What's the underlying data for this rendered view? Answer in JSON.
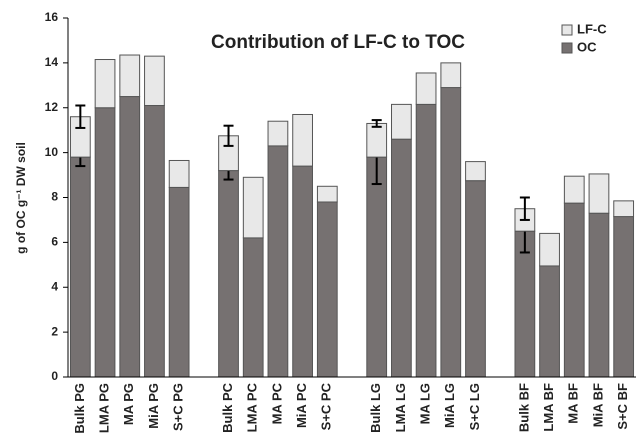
{
  "chart_data": {
    "type": "stacked-bar",
    "title": "Contribution of LF-C to TOC",
    "y_label": "g of OC g⁻¹ DW soil",
    "categories": [
      "Bulk PG",
      "LMA PG",
      "MA PG",
      "MiA PG",
      "S+C PG",
      null,
      "Bulk PC",
      "LMA PC",
      "MA PC",
      "MiA PC",
      "S+C PC",
      null,
      "Bulk LG",
      "LMA LG",
      "MA LG",
      "MiA LG",
      "S+C LG",
      null,
      "Bulk BF",
      "LMA BF",
      "MA BF",
      "MiA BF",
      "S+C BF"
    ],
    "series": [
      {
        "name": "OC",
        "color": "#767171",
        "values": [
          9.8,
          12.0,
          12.5,
          12.1,
          8.45,
          null,
          9.2,
          6.2,
          10.3,
          9.4,
          7.8,
          null,
          9.8,
          10.6,
          12.15,
          12.9,
          8.75,
          null,
          6.5,
          4.95,
          7.75,
          7.3,
          7.15
        ],
        "errors": [
          0.4,
          null,
          null,
          null,
          null,
          null,
          0.4,
          null,
          null,
          null,
          null,
          null,
          1.2,
          null,
          null,
          null,
          null,
          null,
          0.95,
          null,
          null,
          null,
          null
        ]
      },
      {
        "name": "LF-C",
        "color": "#e8e8e8",
        "values": [
          1.8,
          2.15,
          1.85,
          2.2,
          1.2,
          null,
          1.55,
          2.7,
          1.1,
          2.3,
          0.7,
          null,
          1.5,
          1.55,
          1.4,
          1.1,
          0.85,
          null,
          1.0,
          1.45,
          1.2,
          1.75,
          0.7
        ],
        "errors": [
          0.5,
          null,
          null,
          null,
          null,
          null,
          0.45,
          null,
          null,
          null,
          null,
          null,
          0.15,
          null,
          null,
          null,
          null,
          null,
          0.5,
          null,
          null,
          null,
          null
        ]
      }
    ],
    "ylim": [
      0,
      16
    ],
    "yticks": [
      0,
      2,
      4,
      6,
      8,
      10,
      12,
      14,
      16
    ],
    "grid": false,
    "legend": "top-right"
  }
}
